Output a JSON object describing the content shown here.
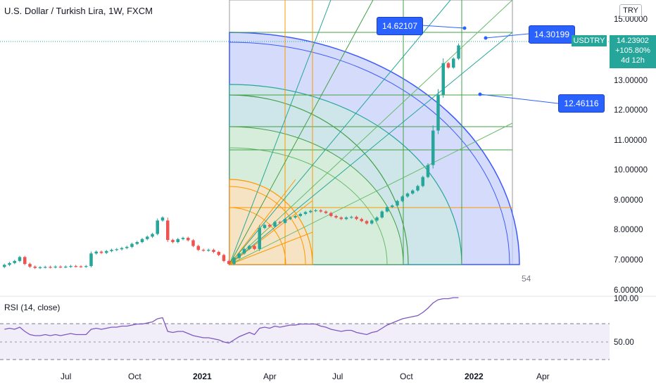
{
  "header": {
    "title": "U.S. Dollar / Turkish Lira, 1W, FXCM",
    "currency": "TRY"
  },
  "price_tags": {
    "symbol": "USDTRY",
    "last_price": "14.23902",
    "change": "+105.80%",
    "countdown": "4d 12h"
  },
  "callouts": {
    "upper": "14.62107",
    "right": "14.30199",
    "lower": "12.46116"
  },
  "gann_box_label": "54",
  "rsi_panel": {
    "label": "RSI (14, close)"
  },
  "colors": {
    "bull": "#26a69a",
    "bear": "#ef5350",
    "rsi_line": "#7e57c2",
    "rsi_band": "#ede7f6",
    "callout": "#2962ff",
    "gann_blue": "#3d5afe",
    "gann_green": "#43a047",
    "gann_orange": "#ff9800"
  },
  "chart_data": [
    {
      "type": "candlestick",
      "title": "U.S. Dollar / Turkish Lira, 1W, FXCM",
      "xlabel": "",
      "ylabel": "",
      "x_ticks": [
        "Jul",
        "Oct",
        "2021",
        "Apr",
        "Jul",
        "Oct",
        "2022",
        "Apr"
      ],
      "y_ticks": [
        "15.00000",
        "13.00000",
        "12.00000",
        "11.00000",
        "10.00000",
        "9.00000",
        "8.00000",
        "7.00000",
        "6.00000"
      ],
      "ylim": [
        6.0,
        15.3
      ],
      "series": [
        {
          "values": [
            {
              "o": 6.85,
              "c": 6.92
            },
            {
              "o": 6.92,
              "c": 6.98
            },
            {
              "o": 6.98,
              "c": 7.05
            },
            {
              "o": 7.05,
              "c": 7.18
            },
            {
              "o": 7.18,
              "c": 6.95
            },
            {
              "o": 6.95,
              "c": 6.86
            },
            {
              "o": 6.86,
              "c": 6.82
            },
            {
              "o": 6.82,
              "c": 6.84
            },
            {
              "o": 6.84,
              "c": 6.85
            },
            {
              "o": 6.85,
              "c": 6.84
            },
            {
              "o": 6.84,
              "c": 6.86
            },
            {
              "o": 6.86,
              "c": 6.85
            },
            {
              "o": 6.85,
              "c": 6.86
            },
            {
              "o": 6.86,
              "c": 6.88
            },
            {
              "o": 6.88,
              "c": 6.87
            },
            {
              "o": 6.87,
              "c": 6.86
            },
            {
              "o": 6.86,
              "c": 6.88
            },
            {
              "o": 6.88,
              "c": 7.3
            },
            {
              "o": 7.3,
              "c": 7.36
            },
            {
              "o": 7.36,
              "c": 7.32
            },
            {
              "o": 7.32,
              "c": 7.38
            },
            {
              "o": 7.38,
              "c": 7.42
            },
            {
              "o": 7.42,
              "c": 7.44
            },
            {
              "o": 7.44,
              "c": 7.48
            },
            {
              "o": 7.48,
              "c": 7.52
            },
            {
              "o": 7.52,
              "c": 7.62
            },
            {
              "o": 7.62,
              "c": 7.68
            },
            {
              "o": 7.68,
              "c": 7.78
            },
            {
              "o": 7.78,
              "c": 7.86
            },
            {
              "o": 7.86,
              "c": 7.95
            },
            {
              "o": 7.95,
              "c": 8.4
            },
            {
              "o": 8.4,
              "c": 8.5
            },
            {
              "o": 8.4,
              "c": 7.75
            },
            {
              "o": 7.75,
              "c": 7.68
            },
            {
              "o": 7.68,
              "c": 7.78
            },
            {
              "o": 7.78,
              "c": 7.82
            },
            {
              "o": 7.82,
              "c": 7.74
            },
            {
              "o": 7.74,
              "c": 7.55
            },
            {
              "o": 7.55,
              "c": 7.42
            },
            {
              "o": 7.42,
              "c": 7.4
            },
            {
              "o": 7.4,
              "c": 7.42
            },
            {
              "o": 7.42,
              "c": 7.35
            },
            {
              "o": 7.35,
              "c": 7.25
            },
            {
              "o": 7.25,
              "c": 7.05
            },
            {
              "o": 7.05,
              "c": 6.95
            },
            {
              "o": 6.95,
              "c": 7.15
            },
            {
              "o": 7.15,
              "c": 7.3
            },
            {
              "o": 7.3,
              "c": 7.45
            },
            {
              "o": 7.45,
              "c": 7.55
            },
            {
              "o": 7.55,
              "c": 7.45
            },
            {
              "o": 7.45,
              "c": 8.15
            },
            {
              "o": 8.15,
              "c": 8.25
            },
            {
              "o": 8.25,
              "c": 8.2
            },
            {
              "o": 8.2,
              "c": 8.35
            },
            {
              "o": 8.35,
              "c": 8.32
            },
            {
              "o": 8.32,
              "c": 8.45
            },
            {
              "o": 8.45,
              "c": 8.5
            },
            {
              "o": 8.5,
              "c": 8.55
            },
            {
              "o": 8.55,
              "c": 8.62
            },
            {
              "o": 8.62,
              "c": 8.68
            },
            {
              "o": 8.68,
              "c": 8.72
            },
            {
              "o": 8.72,
              "c": 8.74
            },
            {
              "o": 8.74,
              "c": 8.7
            },
            {
              "o": 8.7,
              "c": 8.65
            },
            {
              "o": 8.65,
              "c": 8.55
            },
            {
              "o": 8.55,
              "c": 8.5
            },
            {
              "o": 8.5,
              "c": 8.45
            },
            {
              "o": 8.45,
              "c": 8.5
            },
            {
              "o": 8.5,
              "c": 8.52
            },
            {
              "o": 8.52,
              "c": 8.45
            },
            {
              "o": 8.45,
              "c": 8.38
            },
            {
              "o": 8.38,
              "c": 8.3
            },
            {
              "o": 8.3,
              "c": 8.4
            },
            {
              "o": 8.4,
              "c": 8.5
            },
            {
              "o": 8.5,
              "c": 8.7
            },
            {
              "o": 8.7,
              "c": 8.85
            },
            {
              "o": 8.85,
              "c": 8.9
            },
            {
              "o": 8.9,
              "c": 9.05
            },
            {
              "o": 9.05,
              "c": 9.2
            },
            {
              "o": 9.2,
              "c": 9.3
            },
            {
              "o": 9.3,
              "c": 9.4
            },
            {
              "o": 9.4,
              "c": 9.55
            },
            {
              "o": 9.55,
              "c": 9.85
            },
            {
              "o": 9.85,
              "c": 10.25
            },
            {
              "o": 10.25,
              "c": 11.4
            },
            {
              "o": 11.4,
              "c": 12.6
            },
            {
              "o": 12.6,
              "c": 13.65
            },
            {
              "o": 13.65,
              "c": 13.5
            },
            {
              "o": 13.5,
              "c": 13.8
            },
            {
              "o": 13.8,
              "c": 14.24
            }
          ]
        },
        {
          "name": "RSI (14, close)",
          "values": [
            62,
            63,
            62,
            64,
            60,
            57,
            56,
            56,
            57,
            56,
            57,
            56,
            57,
            58,
            57,
            57,
            57,
            62,
            63,
            62,
            63,
            64,
            64,
            65,
            65,
            66,
            67,
            67,
            68,
            69,
            72,
            73,
            60,
            59,
            60,
            60,
            58,
            56,
            55,
            54,
            54,
            53,
            52,
            50,
            49,
            52,
            55,
            57,
            59,
            57,
            63,
            64,
            63,
            65,
            64,
            65,
            66,
            66,
            67,
            67,
            67,
            67,
            65,
            64,
            62,
            61,
            60,
            61,
            61,
            59,
            58,
            57,
            59,
            60,
            63,
            66,
            68,
            70,
            72,
            73,
            74,
            75,
            78,
            82,
            87,
            90,
            91,
            91,
            92,
            92
          ]
        }
      ],
      "rsi_ticks": [
        "100.00",
        "50.00"
      ]
    }
  ]
}
